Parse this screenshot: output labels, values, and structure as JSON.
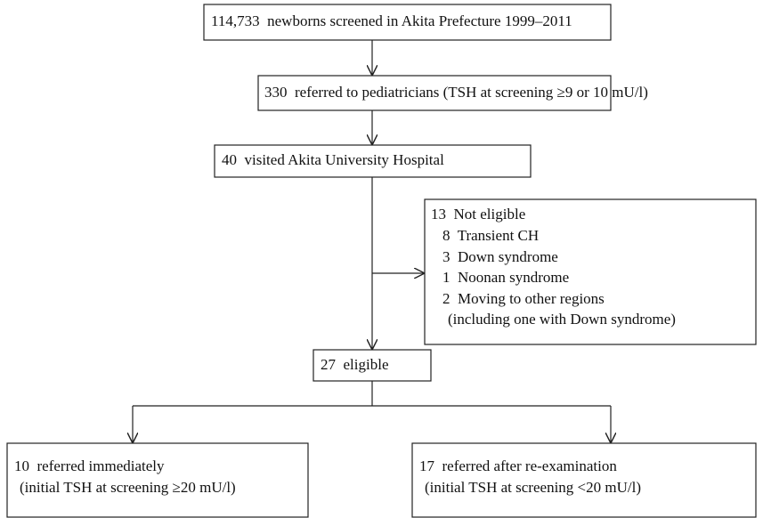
{
  "nodes": [
    {
      "lines": [
        "114,733  newborns screened in Akita Prefecture 1999–2011"
      ]
    },
    {
      "lines": [
        "330  referred to pediatricians (TSH at screening ≥9 or 10 mU/l)"
      ]
    },
    {
      "lines": [
        "40  visited Akita University Hospital"
      ]
    },
    {
      "lines": [
        "13  Not eligible",
        "8  Transient CH",
        "3  Down syndrome",
        "1  Noonan syndrome",
        "2  Moving to other regions",
        "(including one with Down syndrome)"
      ]
    },
    {
      "lines": [
        "27  eligible"
      ]
    },
    {
      "lines": [
        "10  referred immediately",
        "(initial TSH at screening ≥20 mU/l)"
      ]
    },
    {
      "lines": [
        "17  referred after re-examination",
        "(initial TSH at screening <20 mU/l)"
      ]
    }
  ]
}
